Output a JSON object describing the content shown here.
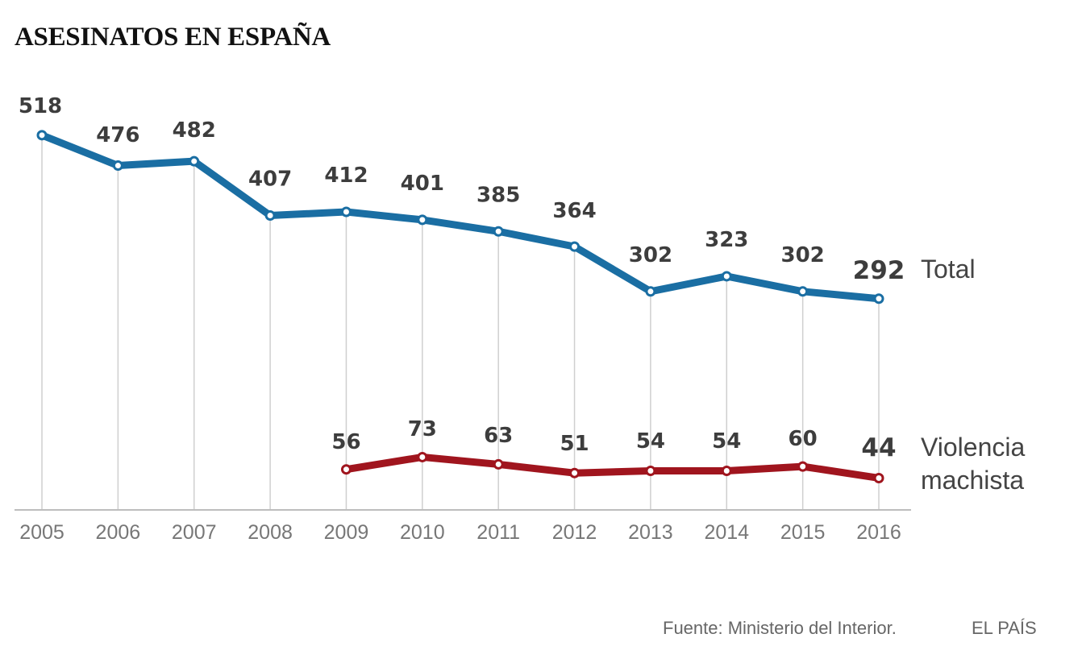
{
  "chart_data": {
    "type": "line",
    "title": "ASESINATOS EN ESPAÑA",
    "xlabel": "",
    "ylabel": "",
    "grid": "vertical",
    "legend": "right (inline labels at series end)",
    "categories": [
      "2005",
      "2006",
      "2007",
      "2008",
      "2009",
      "2010",
      "2011",
      "2012",
      "2013",
      "2014",
      "2015",
      "2016"
    ],
    "ylim": [
      0,
      518
    ],
    "series": [
      {
        "name": "Total",
        "label": "Total",
        "color": "#1a6ea3",
        "values": [
          518,
          476,
          482,
          407,
          412,
          401,
          385,
          364,
          302,
          323,
          302,
          292
        ]
      },
      {
        "name": "Violencia machista",
        "label": [
          "Violencia",
          "machista"
        ],
        "color": "#a0151e",
        "values": [
          null,
          null,
          null,
          null,
          56,
          73,
          63,
          51,
          54,
          54,
          60,
          44
        ]
      }
    ]
  },
  "footer": {
    "source": "Fuente: Ministerio del Interior.",
    "brand": "EL PAÍS"
  }
}
